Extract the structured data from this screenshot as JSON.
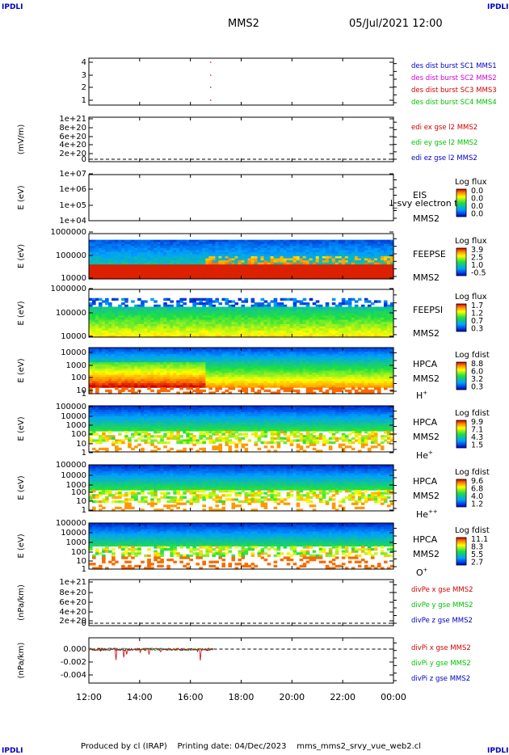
{
  "corner_label": "IPDLI",
  "header": {
    "title": "MMS2",
    "date": "05/Jul/2021 12:00"
  },
  "footer": {
    "text": "Produced by cl (IRAP)    Printing date: 04/Dec/2023    mms_mms2_srvy_vue_web2.cl"
  },
  "colors": {
    "mms1": "#0000c0",
    "mms2": "#d000d0",
    "mms3": "#d00000",
    "mms4": "#00c000",
    "x": "#d00000",
    "y": "#00c000",
    "z": "#0000c0"
  },
  "chart_data": [
    {
      "type": "scatter",
      "panel": "des-dist-burst",
      "yticks": [
        "4",
        "3",
        "2",
        "1"
      ],
      "legend": [
        {
          "label": "des dist burst SC1 MMS1",
          "color": "#0000c0"
        },
        {
          "label": "des dist burst SC2 MMS2",
          "color": "#d000d0"
        },
        {
          "label": "des dist burst SC3 MMS3",
          "color": "#d00000"
        },
        {
          "label": "des dist burst SC4 MMS4",
          "color": "#00c000"
        }
      ],
      "points": [
        {
          "x": "16:48",
          "y": 4
        },
        {
          "x": "16:48",
          "y": 3
        },
        {
          "x": "16:48",
          "y": 2
        },
        {
          "x": "16:48",
          "y": 1
        }
      ]
    },
    {
      "type": "line",
      "panel": "edi-e-gse",
      "ylabel": "(mV/m)",
      "yticks": [
        "1e+21",
        "8e+20",
        "6e+20",
        "4e+20",
        "2e+20",
        "0"
      ],
      "legend": [
        {
          "label": "edi ex gse l2 MMS2",
          "color": "#d00000"
        },
        {
          "label": "edi ey gse l2 MMS2",
          "color": "#00c000"
        },
        {
          "label": "edi ez gse l2 MMS2",
          "color": "#0000c0"
        }
      ]
    },
    {
      "type": "heatmap",
      "panel": "eis",
      "ylabel": "E (eV)",
      "yticks": [
        "1e+07",
        "1e+06",
        "1e+05",
        "1e+04"
      ],
      "side_labels": [
        "EIS",
        "MMS2"
      ],
      "overlay": "l_svy electron tof",
      "colorbar": {
        "title": "Log flux",
        "ticks": [
          "0.0",
          "0.0",
          "0.0",
          "0.0"
        ]
      }
    },
    {
      "type": "heatmap",
      "panel": "feeps-e",
      "ylabel": "E (eV)",
      "yticks": [
        "1000000",
        "100000",
        "10000"
      ],
      "side_labels": [
        "FEEPSE",
        "MMS2"
      ],
      "colorbar": {
        "title": "Log flux",
        "ticks": [
          "3.9",
          "2.5",
          "1.0",
          "-0.5"
        ]
      }
    },
    {
      "type": "heatmap",
      "panel": "feeps-i",
      "ylabel": "E (eV)",
      "yticks": [
        "1000000",
        "100000",
        "10000"
      ],
      "side_labels": [
        "FEEPSI",
        "MMS2"
      ],
      "colorbar": {
        "title": "Log flux",
        "ticks": [
          "1.7",
          "1.2",
          "0.7",
          "0.3"
        ]
      }
    },
    {
      "type": "heatmap",
      "panel": "hpca-h",
      "ylabel": "E (eV)",
      "yticks": [
        "10000",
        "1000",
        "100",
        "10",
        "1"
      ],
      "side_labels": [
        "HPCA",
        "MMS2"
      ],
      "species": "H",
      "species_charge": "+",
      "colorbar": {
        "title": "Log fdist",
        "ticks": [
          "8.8",
          "6.0",
          "3.2",
          "0.3"
        ]
      }
    },
    {
      "type": "heatmap",
      "panel": "hpca-he",
      "ylabel": "E (eV)",
      "yticks": [
        "100000",
        "10000",
        "1000",
        "100",
        "10",
        "1"
      ],
      "side_labels": [
        "HPCA",
        "MMS2"
      ],
      "species": "He",
      "species_charge": "+",
      "colorbar": {
        "title": "Log fdist",
        "ticks": [
          "9.9",
          "7.1",
          "4.3",
          "1.5"
        ]
      }
    },
    {
      "type": "heatmap",
      "panel": "hpca-he2",
      "ylabel": "E (eV)",
      "yticks": [
        "100000",
        "10000",
        "1000",
        "100",
        "10",
        "1"
      ],
      "side_labels": [
        "HPCA",
        "MMS2"
      ],
      "species": "He",
      "species_charge": "++",
      "colorbar": {
        "title": "Log fdist",
        "ticks": [
          "9.6",
          "6.8",
          "4.0",
          "1.2"
        ]
      }
    },
    {
      "type": "heatmap",
      "panel": "hpca-o",
      "ylabel": "E (eV)",
      "yticks": [
        "100000",
        "10000",
        "1000",
        "100",
        "10",
        "1"
      ],
      "side_labels": [
        "HPCA",
        "MMS2"
      ],
      "species": "O",
      "species_charge": "+",
      "colorbar": {
        "title": "Log fdist",
        "ticks": [
          "11.1",
          "8.3",
          "5.5",
          "2.7"
        ]
      }
    },
    {
      "type": "line",
      "panel": "divpe",
      "ylabel": "(nPa/km)",
      "yticks": [
        "1e+21",
        "8e+20",
        "6e+20",
        "4e+20",
        "2e+20",
        "0"
      ],
      "legend": [
        {
          "label": "divPe x gse MMS2",
          "color": "#d00000"
        },
        {
          "label": "divPe y gse MMS2",
          "color": "#00c000"
        },
        {
          "label": "divPe z gse MMS2",
          "color": "#0000c0"
        }
      ]
    },
    {
      "type": "line",
      "panel": "divpi",
      "ylabel": "(nPa/km)",
      "yticks": [
        "0.000",
        "-0.002",
        "-0.004"
      ],
      "data_end": "16:55",
      "legend": [
        {
          "label": "divPi x gse MMS2",
          "color": "#d00000"
        },
        {
          "label": "divPi y gse MMS2",
          "color": "#00c000"
        },
        {
          "label": "divPi z gse MMS2",
          "color": "#0000c0"
        }
      ]
    }
  ],
  "time_axis": {
    "ticks": [
      "12:00",
      "14:00",
      "16:00",
      "18:00",
      "20:00",
      "22:00",
      "00:00"
    ]
  }
}
